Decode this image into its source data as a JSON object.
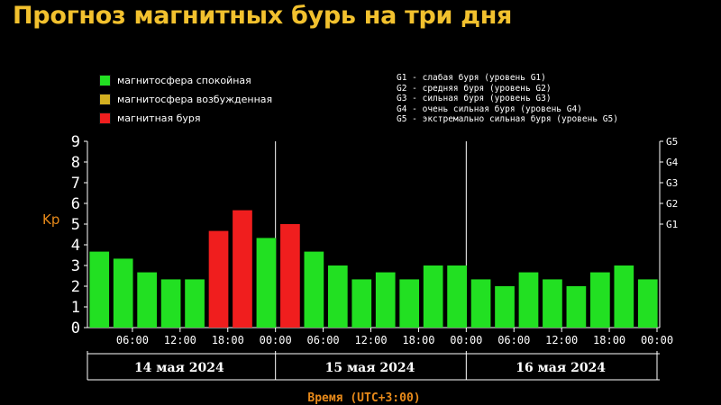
{
  "title": "Прогноз магнитных бурь на три дня",
  "legend": [
    {
      "label": "магнитосфера спокойная",
      "color": "#22e022"
    },
    {
      "label": "магнитосфера возбужденная",
      "color": "#d4b020"
    },
    {
      "label": "магнитная буря",
      "color": "#f01e1e"
    }
  ],
  "g_legend": [
    "G1 - слабая буря (уровень G1)",
    "G2 - средняя буря (уровень G2)",
    "G3 - сильная буря (уровень G3)",
    "G4 - очень сильная буря (уровень G4)",
    "G5 - экстремально сильная буря (уровень G5)"
  ],
  "colors": {
    "quiet": "#22e022",
    "storm": "#f01e1e",
    "axis": "#ffffff",
    "accent": "#e88a1a",
    "title": "#f2c12e"
  },
  "chart_data": {
    "type": "bar",
    "ylabel": "Kp",
    "xlabel": "Время (UTC+3:00)",
    "ylim": [
      0,
      9
    ],
    "yticks": [
      "0",
      "1",
      "2",
      "3",
      "4",
      "5",
      "6",
      "7",
      "8",
      "9"
    ],
    "right_ticks": [
      {
        "label": "G1",
        "value": 5
      },
      {
        "label": "G2",
        "value": 6
      },
      {
        "label": "G3",
        "value": 7
      },
      {
        "label": "G4",
        "value": 8
      },
      {
        "label": "G5",
        "value": 9
      }
    ],
    "time_ticks": [
      "06:00",
      "12:00",
      "18:00",
      "00:00",
      "06:00",
      "12:00",
      "18:00",
      "00:00",
      "06:00",
      "12:00",
      "18:00",
      "00:00"
    ],
    "days": [
      "14 мая 2024",
      "15 мая 2024",
      "16 мая 2024"
    ],
    "storm_threshold": 4.67,
    "values": [
      3.67,
      3.33,
      2.67,
      2.33,
      2.33,
      4.67,
      5.67,
      4.33,
      5.0,
      3.67,
      3.0,
      2.33,
      2.67,
      2.33,
      3.0,
      3.0,
      2.33,
      2.0,
      2.67,
      2.33,
      2.0,
      2.67,
      3.0,
      2.33
    ]
  }
}
